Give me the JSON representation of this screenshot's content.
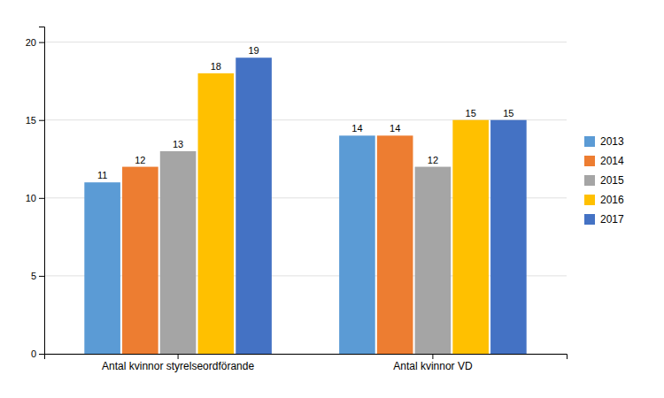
{
  "chart_data": {
    "type": "bar",
    "categories": [
      "Antal kvinnor styrelseordförande",
      "Antal kvinnor VD"
    ],
    "series": [
      {
        "name": "2013",
        "color": "#5B9BD5",
        "values": [
          11,
          14
        ]
      },
      {
        "name": "2014",
        "color": "#ED7D31",
        "values": [
          12,
          14
        ]
      },
      {
        "name": "2015",
        "color": "#A5A5A5",
        "values": [
          13,
          12
        ]
      },
      {
        "name": "2016",
        "color": "#FFC000",
        "values": [
          18,
          15
        ]
      },
      {
        "name": "2017",
        "color": "#4472C4",
        "values": [
          19,
          15
        ]
      }
    ],
    "ylim": [
      0,
      21
    ],
    "yticks": [
      0,
      5,
      10,
      15,
      20
    ],
    "grid": true,
    "legend": "right",
    "data_labels": true
  }
}
